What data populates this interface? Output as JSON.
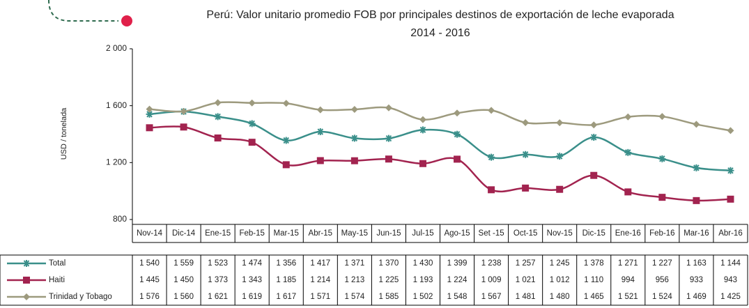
{
  "chart_data": {
    "type": "line",
    "title": "Perú: Valor unitario promedio FOB por principales destinos de exportación de leche evaporada",
    "subtitle": "2014 - 2016",
    "y_label": "USD / tonelada",
    "categories": [
      "Nov-14",
      "Dic-14",
      "Ene-15",
      "Feb-15",
      "Mar-15",
      "Abr-15",
      "May-15",
      "Jun-15",
      "Jul-15",
      "Ago-15",
      "Set -15",
      "Oct-15",
      "Nov-15",
      "Dic-15",
      "Ene-16",
      "Feb-16",
      "Mar-16",
      "Abr-16"
    ],
    "ylim": [
      800,
      2000
    ],
    "yticks": [
      800,
      {
        "value": 1200,
        "label": "1 200"
      },
      {
        "value": 1600,
        "label": "1 600"
      },
      {
        "value": 2000,
        "label": "2 000"
      }
    ],
    "series": [
      {
        "name": "Total",
        "color": "#3a8f8a",
        "marker": "star",
        "values": [
          1540,
          1559,
          1523,
          1474,
          1356,
          1417,
          1371,
          1370,
          1430,
          1399,
          1238,
          1257,
          1245,
          1378,
          1271,
          1227,
          1163,
          1144
        ],
        "value_labels": [
          "1 540",
          "1 559",
          "1 523",
          "1 474",
          "1 356",
          "1 417",
          "1 371",
          "1 370",
          "1 430",
          "1 399",
          "1 238",
          "1 257",
          "1 245",
          "1 378",
          "1 271",
          "1 227",
          "1 163",
          "1 144"
        ]
      },
      {
        "name": "Haiti",
        "color": "#a2234f",
        "marker": "square",
        "values": [
          1445,
          1450,
          1373,
          1343,
          1185,
          1214,
          1213,
          1225,
          1193,
          1224,
          1009,
          1021,
          1012,
          1110,
          994,
          956,
          933,
          943
        ],
        "value_labels": [
          "1 445",
          "1 450",
          "1 373",
          "1 343",
          "1 185",
          "1 214",
          "1 213",
          "1 225",
          "1 193",
          "1 224",
          "1 009",
          "1 021",
          "1 012",
          "1 110",
          "994",
          "956",
          "933",
          "943"
        ]
      },
      {
        "name": "Trinidad y Tobago",
        "color": "#9d9a7e",
        "marker": "diamond",
        "values": [
          1576,
          1560,
          1621,
          1619,
          1617,
          1571,
          1574,
          1585,
          1502,
          1548,
          1567,
          1481,
          1480,
          1465,
          1521,
          1524,
          1469,
          1425
        ],
        "value_labels": [
          "1 576",
          "1 560",
          "1 621",
          "1 619",
          "1 617",
          "1 571",
          "1 574",
          "1 585",
          "1 502",
          "1 548",
          "1 567",
          "1 481",
          "1 480",
          "1 465",
          "1 521",
          "1 524",
          "1 469",
          "1 425"
        ]
      }
    ]
  }
}
